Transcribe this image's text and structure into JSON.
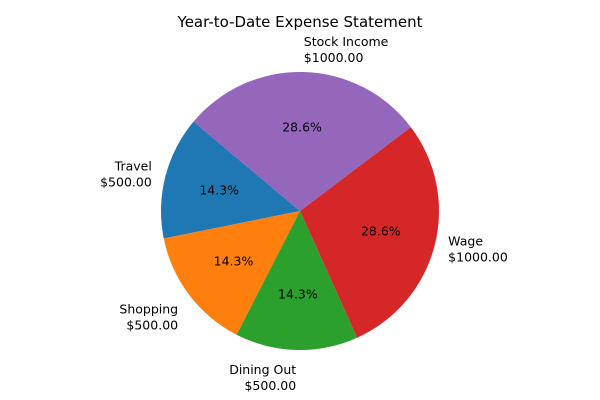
{
  "chart_data": {
    "type": "pie",
    "title": "Year-to-Date Expense Statement",
    "slices": [
      {
        "label": "Travel",
        "amount_text": "$500.00",
        "value": 500,
        "percent_text": "14.3%",
        "color": "#1f77b4"
      },
      {
        "label": "Shopping",
        "amount_text": "$500.00",
        "value": 500,
        "percent_text": "14.3%",
        "color": "#ff7f0e"
      },
      {
        "label": "Dining Out",
        "amount_text": "$500.00",
        "value": 500,
        "percent_text": "14.3%",
        "color": "#2ca02c"
      },
      {
        "label": "Wage",
        "amount_text": "$1000.00",
        "value": 1000,
        "percent_text": "28.6%",
        "color": "#d62728"
      },
      {
        "label": "Stock Income",
        "amount_text": "$1000.00",
        "value": 1000,
        "percent_text": "28.6%",
        "color": "#9467bd"
      }
    ],
    "start_angle_deg": 140,
    "direction": "counterclockwise",
    "legend": "none"
  }
}
